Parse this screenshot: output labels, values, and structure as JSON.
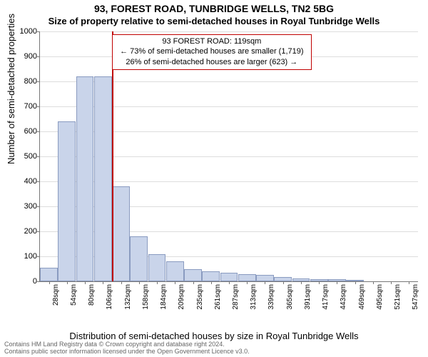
{
  "title": "93, FOREST ROAD, TUNBRIDGE WELLS, TN2 5BG",
  "subtitle": "Size of property relative to semi-detached houses in Royal Tunbridge Wells",
  "ylabel": "Number of semi-detached properties",
  "xlabel": "Distribution of semi-detached houses by size in Royal Tunbridge Wells",
  "footer_line1": "Contains HM Land Registry data © Crown copyright and database right 2024.",
  "footer_line2": "Contains public sector information licensed under the Open Government Licence v3.0.",
  "chart": {
    "type": "histogram",
    "background_color": "#ffffff",
    "grid_color": "#dddddd",
    "axis_color": "#777777",
    "bar_fill": "#c9d4ea",
    "bar_border": "#8a9bc0",
    "reference_color": "#c00000",
    "ylim": [
      0,
      1000
    ],
    "ytick_step": 100,
    "yticks": [
      0,
      100,
      200,
      300,
      400,
      500,
      600,
      700,
      800,
      900,
      1000
    ],
    "tick_fontsize": 11,
    "title_fontsize": 14,
    "label_fontsize": 13,
    "categories": [
      "28sqm",
      "54sqm",
      "80sqm",
      "106sqm",
      "132sqm",
      "158sqm",
      "184sqm",
      "209sqm",
      "235sqm",
      "261sqm",
      "287sqm",
      "313sqm",
      "339sqm",
      "365sqm",
      "391sqm",
      "417sqm",
      "443sqm",
      "469sqm",
      "495sqm",
      "521sqm",
      "547sqm"
    ],
    "values": [
      55,
      640,
      820,
      820,
      380,
      180,
      110,
      80,
      50,
      40,
      35,
      30,
      25,
      18,
      12,
      8,
      10,
      6,
      0,
      0,
      0
    ],
    "reference_value_sqm": 119,
    "x_min_sqm": 15,
    "x_max_sqm": 560,
    "bin_width_sqm": 26,
    "callout": {
      "line1": "93 FOREST ROAD: 119sqm",
      "line2": "← 73% of semi-detached houses are smaller (1,719)",
      "line3": "26% of semi-detached houses are larger (623) →"
    }
  }
}
